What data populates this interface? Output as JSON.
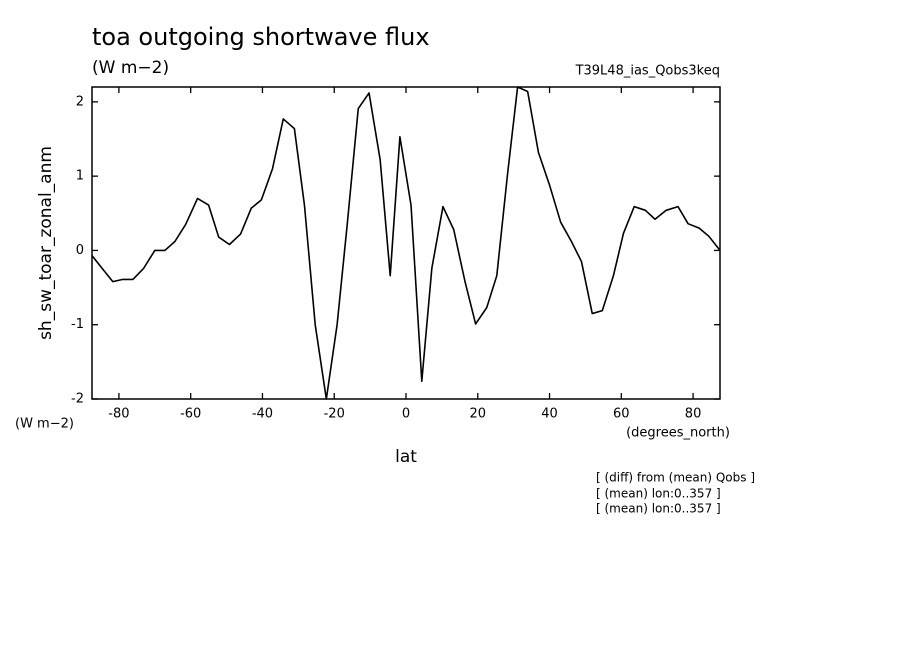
{
  "chart_data": {
    "type": "line",
    "title": "toa outgoing shortwave flux",
    "subtitle": "(W m−2)",
    "experiment": "T39L48_ias_Qobs3keq",
    "y_label": "sh_sw_toar_zonal_anm",
    "y_units": "(W m−2)",
    "x_label": "lat",
    "x_units": "(degrees_north)",
    "notes": [
      "[ (diff) from (mean) Qobs ]",
      "[ (mean) lon:0..357 ]",
      "[ (mean) lon:0..357 ]"
    ],
    "color": "#000000",
    "x": [
      -87.5,
      -84.7,
      -81.7,
      -78.9,
      -76.1,
      -73.1,
      -70.0,
      -67.2,
      -64.4,
      -61.4,
      -58.1,
      -55.0,
      -52.2,
      -49.2,
      -46.1,
      -43.1,
      -40.3,
      -37.2,
      -34.2,
      -31.1,
      -28.3,
      -25.3,
      -22.2,
      -19.2,
      -16.4,
      -13.3,
      -10.3,
      -7.2,
      -4.4,
      -1.7,
      1.4,
      4.4,
      7.2,
      10.3,
      13.3,
      16.4,
      19.4,
      22.5,
      25.3,
      28.3,
      31.1,
      33.9,
      36.9,
      40.0,
      43.1,
      46.1,
      48.9,
      51.9,
      54.7,
      57.8,
      60.6,
      63.6,
      66.7,
      69.4,
      72.5,
      75.8,
      78.6,
      81.7,
      84.4,
      87.5
    ],
    "values": [
      -0.07,
      -0.24,
      -0.42,
      -0.39,
      -0.39,
      -0.24,
      0.0,
      0.0,
      0.12,
      0.35,
      0.7,
      0.61,
      0.18,
      0.08,
      0.22,
      0.57,
      0.68,
      1.1,
      1.77,
      1.64,
      0.61,
      -1.0,
      -2.0,
      -1.0,
      0.34,
      1.91,
      2.12,
      1.22,
      -0.34,
      1.53,
      0.61,
      -1.76,
      -0.24,
      0.59,
      0.28,
      -0.41,
      -0.99,
      -0.77,
      -0.34,
      1.03,
      2.2,
      2.14,
      1.32,
      0.88,
      0.38,
      0.12,
      -0.15,
      -0.85,
      -0.81,
      -0.34,
      0.23,
      0.59,
      0.54,
      0.42,
      0.54,
      0.59,
      0.36,
      0.3,
      0.19,
      0.0
    ],
    "xlim": [
      -87.5,
      87.5
    ],
    "xticks": [
      -80,
      -60,
      -40,
      -20,
      0,
      20,
      40,
      60,
      80
    ],
    "ylim": [
      -2,
      2.2
    ],
    "yticks": [
      -2,
      -1,
      0,
      1,
      2
    ]
  }
}
